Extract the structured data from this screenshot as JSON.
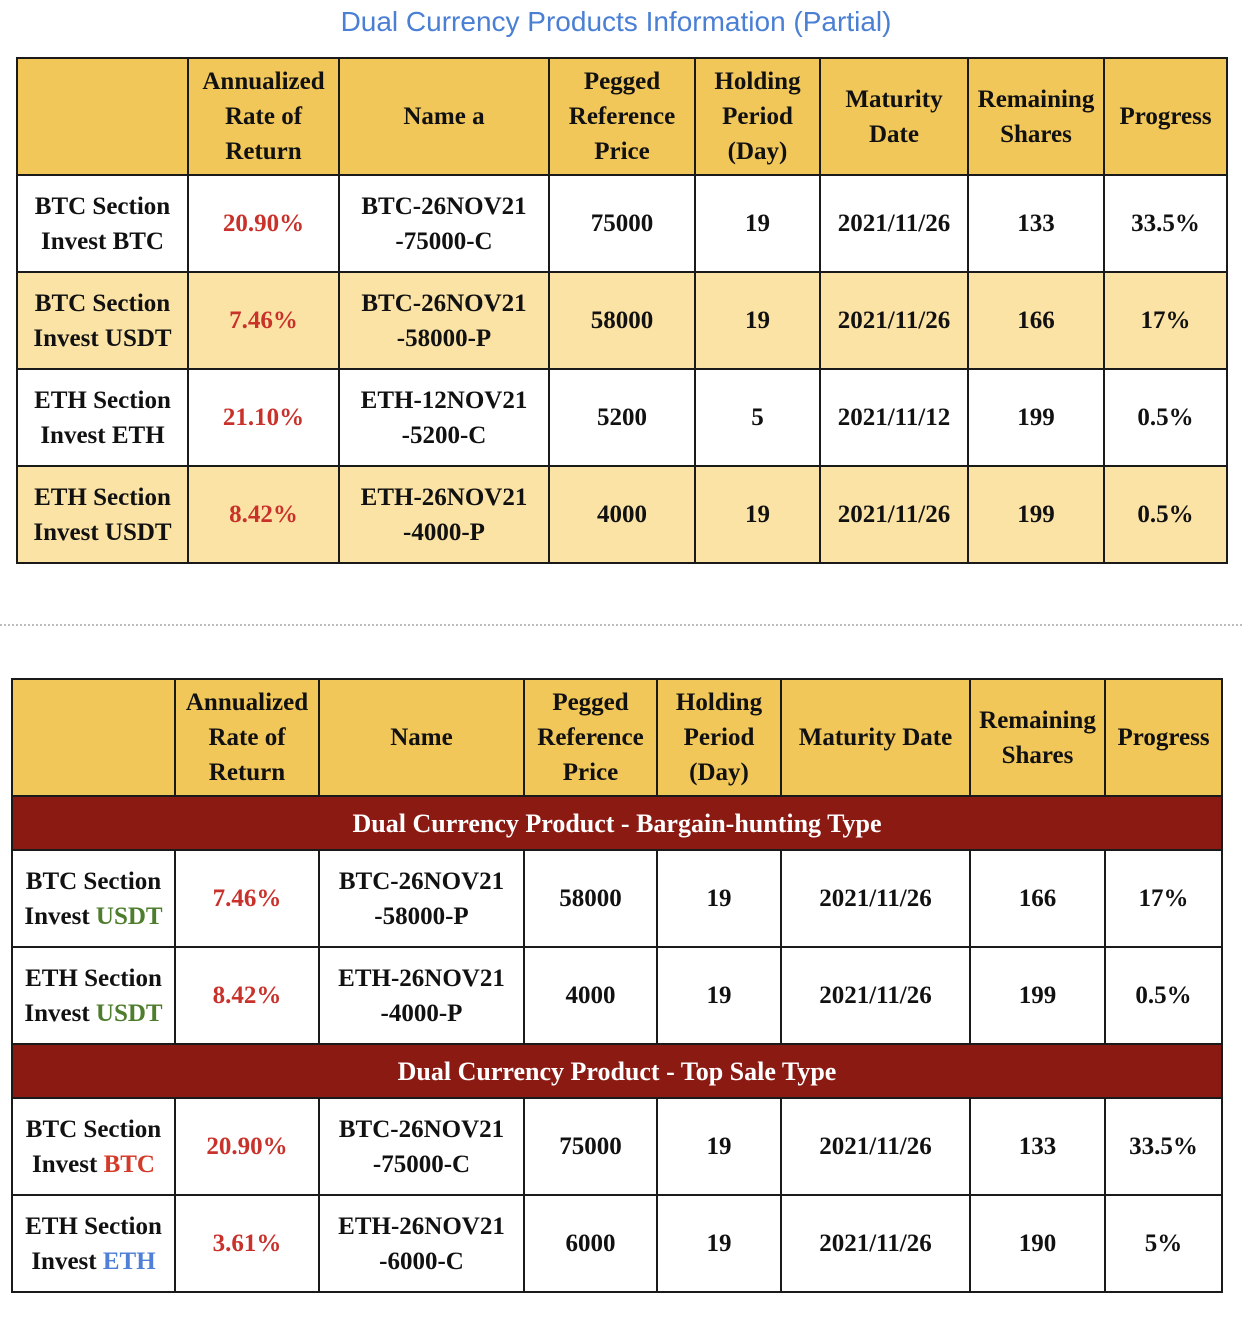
{
  "title": "Dual Currency Products Information (Partial)",
  "colors": {
    "title": "#4a7fd4",
    "header_bg": "#f1c75a",
    "alt_row_bg": "#fbe3a6",
    "rate_red": "#c8322b",
    "section_bg": "#8b1a13",
    "usdt_green": "#4e7d2e",
    "btc_red": "#d43a2a",
    "eth_blue": "#4f7fd6"
  },
  "table1": {
    "headers": {
      "rate": [
        "Annualized",
        "Rate of",
        "Return"
      ],
      "name": "Name a",
      "pegged": [
        "Pegged",
        "Reference",
        "Price"
      ],
      "holding": [
        "Holding",
        "Period",
        "(Day)"
      ],
      "maturity": [
        "Maturity",
        "Date"
      ],
      "remaining": [
        "Remaining",
        "Shares"
      ],
      "progress": "Progress"
    },
    "rows": [
      {
        "section": "BTC Section",
        "invest": "Invest BTC",
        "rate": "20.90%",
        "name1": "BTC-26NOV21",
        "name2": "-75000-C",
        "pegged": "75000",
        "holding": "19",
        "maturity": "2021/11/26",
        "remaining": "133",
        "progress": "33.5%"
      },
      {
        "section": "BTC Section",
        "invest": "Invest USDT",
        "rate": "7.46%",
        "name1": "BTC-26NOV21",
        "name2": "-58000-P",
        "pegged": "58000",
        "holding": "19",
        "maturity": "2021/11/26",
        "remaining": "166",
        "progress": "17%"
      },
      {
        "section": "ETH Section",
        "invest": "Invest ETH",
        "rate": "21.10%",
        "name1": "ETH-12NOV21",
        "name2": "-5200-C",
        "pegged": "5200",
        "holding": "5",
        "maturity": "2021/11/12",
        "remaining": "199",
        "progress": "0.5%"
      },
      {
        "section": "ETH Section",
        "invest": "Invest USDT",
        "rate": "8.42%",
        "name1": "ETH-26NOV21",
        "name2": "-4000-P",
        "pegged": "4000",
        "holding": "19",
        "maturity": "2021/11/26",
        "remaining": "199",
        "progress": "0.5%"
      }
    ]
  },
  "table2": {
    "headers": {
      "rate": [
        "Annualized",
        "Rate of",
        "Return"
      ],
      "name": "Name",
      "pegged": [
        "Pegged",
        "Reference",
        "Price"
      ],
      "holding": [
        "Holding",
        "Period",
        "(Day)"
      ],
      "maturity": "Maturity Date",
      "remaining": [
        "Remaining",
        "Shares"
      ],
      "progress": "Progress"
    },
    "sections": [
      {
        "title": "Dual Currency Product - Bargain-hunting Type",
        "rows": [
          {
            "section": "BTC Section",
            "invest_prefix": "Invest ",
            "invest_coin": "USDT",
            "coin_color": "#4e7d2e",
            "rate": "7.46%",
            "name1": "BTC-26NOV21",
            "name2": "-58000-P",
            "pegged": "58000",
            "holding": "19",
            "maturity": "2021/11/26",
            "remaining": "166",
            "progress": "17%"
          },
          {
            "section": "ETH Section",
            "invest_prefix": "Invest ",
            "invest_coin": "USDT",
            "coin_color": "#4e7d2e",
            "rate": "8.42%",
            "name1": "ETH-26NOV21",
            "name2": "-4000-P",
            "pegged": "4000",
            "holding": "19",
            "maturity": "2021/11/26",
            "remaining": "199",
            "progress": "0.5%"
          }
        ]
      },
      {
        "title": "Dual Currency Product - Top Sale Type",
        "rows": [
          {
            "section": "BTC Section",
            "invest_prefix": "Invest ",
            "invest_coin": "BTC",
            "coin_color": "#d43a2a",
            "rate": "20.90%",
            "name1": "BTC-26NOV21",
            "name2": "-75000-C",
            "pegged": "75000",
            "holding": "19",
            "maturity": "2021/11/26",
            "remaining": "133",
            "progress": "33.5%"
          },
          {
            "section": "ETH Section",
            "invest_prefix": "Invest ",
            "invest_coin": "ETH",
            "coin_color": "#4f7fd6",
            "rate": "3.61%",
            "name1": "ETH-26NOV21",
            "name2": "-6000-C",
            "pegged": "6000",
            "holding": "19",
            "maturity": "2021/11/26",
            "remaining": "190",
            "progress": "5%"
          }
        ]
      }
    ]
  }
}
